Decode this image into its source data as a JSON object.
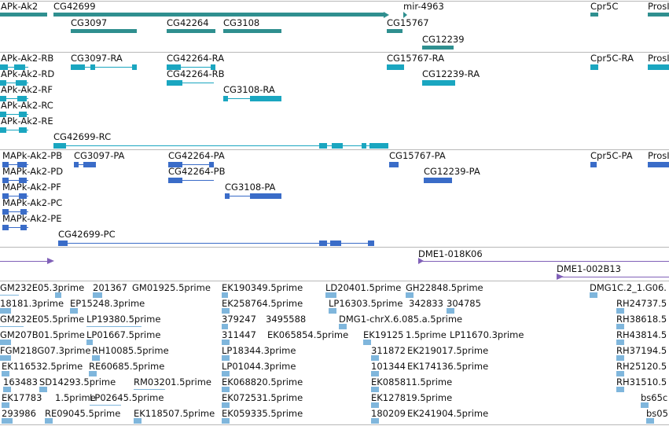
{
  "tracks": {
    "genes": [
      {
        "label": "APk-Ak2"
      },
      {
        "label": "CG42699"
      },
      {
        "label": "mir-4963"
      },
      {
        "label": "Cpr5C"
      },
      {
        "label": "ProsI"
      },
      {
        "label": "CG3097"
      },
      {
        "label": "CG42264"
      },
      {
        "label": "CG3108"
      },
      {
        "label": "CG15767"
      },
      {
        "label": "CG12239"
      }
    ],
    "transcripts": [
      {
        "label": "APk-Ak2-RB"
      },
      {
        "label": "CG3097-RA"
      },
      {
        "label": "CG42264-RA"
      },
      {
        "label": "CG15767-RA"
      },
      {
        "label": "Cpr5C-RA"
      },
      {
        "label": "ProsI"
      },
      {
        "label": "APk-Ak2-RD"
      },
      {
        "label": "CG42264-RB"
      },
      {
        "label": "CG12239-RA"
      },
      {
        "label": "APk-Ak2-RF"
      },
      {
        "label": "CG3108-RA"
      },
      {
        "label": "APk-Ak2-RC"
      },
      {
        "label": "APk-Ak2-RE"
      },
      {
        "label": "CG42699-RC"
      }
    ],
    "proteins": [
      {
        "label": "MAPk-Ak2-PB"
      },
      {
        "label": "CG3097-PA"
      },
      {
        "label": "CG42264-PA"
      },
      {
        "label": "CG15767-PA"
      },
      {
        "label": "Cpr5C-PA"
      },
      {
        "label": "ProsI"
      },
      {
        "label": "MAPk-Ak2-PD"
      },
      {
        "label": "CG42264-PB"
      },
      {
        "label": "CG12239-PA"
      },
      {
        "label": "MAPk-Ak2-PF"
      },
      {
        "label": "CG3108-PA"
      },
      {
        "label": "MAPk-Ak2-PC"
      },
      {
        "label": "MAPk-Ak2-PE"
      },
      {
        "label": "CG42699-PC"
      }
    ],
    "clones": [
      {
        "label": "DME1-018K06"
      },
      {
        "label": "DME1-002B13"
      }
    ],
    "ests": [
      {
        "label": "GM232E05.3prime"
      },
      {
        "label": "201367"
      },
      {
        "label": "GM01925.5prime"
      },
      {
        "label": "EK190349.5prime"
      },
      {
        "label": "LD20401.5prime"
      },
      {
        "label": "GH22848.5prime"
      },
      {
        "label": "DMG1C.2_1.G06."
      },
      {
        "label": "18181.3prime"
      },
      {
        "label": "EP15248.3prime"
      },
      {
        "label": "EK258764.5prime"
      },
      {
        "label": "LP16303.5prime"
      },
      {
        "label": "342833"
      },
      {
        "label": "304785"
      },
      {
        "label": "RH24737.5"
      },
      {
        "label": "GM232E05.5prime"
      },
      {
        "label": "LP19380.5prime"
      },
      {
        "label": "379247"
      },
      {
        "label": "3495588"
      },
      {
        "label": "DMG1-chrX.6.085.a.5prime"
      },
      {
        "label": "RH38618.5"
      },
      {
        "label": "GM207B01.5prime"
      },
      {
        "label": "LP01667.5prime"
      },
      {
        "label": "311447"
      },
      {
        "label": "EK065854.5prime"
      },
      {
        "label": "EK19125"
      },
      {
        "label": "1.5prime"
      },
      {
        "label": "LP11670.3prime"
      },
      {
        "label": "RH43814.5"
      },
      {
        "label": "FGM218G07.3prime"
      },
      {
        "label": "RH10085.5prime"
      },
      {
        "label": "LP18344.3prime"
      },
      {
        "label": "311872"
      },
      {
        "label": "EK219017.5prime"
      },
      {
        "label": "RH37194.5"
      },
      {
        "label": "EK116532.5prime"
      },
      {
        "label": "RE60685.5prime"
      },
      {
        "label": "LP01044.3prime"
      },
      {
        "label": "101344"
      },
      {
        "label": "EK174136.5prime"
      },
      {
        "label": "RH25120.5"
      },
      {
        "label": "163483"
      },
      {
        "label": "SD14293.5prime"
      },
      {
        "label": "RM03201.5prime"
      },
      {
        "label": "EK068820.5prime"
      },
      {
        "label": "EK085811.5prime"
      },
      {
        "label": "RH31510.5"
      },
      {
        "label": "EK17783"
      },
      {
        "label": "1.5prime"
      },
      {
        "label": "LP02645.5prime"
      },
      {
        "label": "EK072531.5prime"
      },
      {
        "label": "EK127819.5prime"
      },
      {
        "label": "bs65c"
      },
      {
        "label": "293986"
      },
      {
        "label": "RE09045.5prime"
      },
      {
        "label": "EK118507.5prime"
      },
      {
        "label": "EK059335.5prime"
      },
      {
        "label": "180209"
      },
      {
        "label": "EK241904.5prime"
      },
      {
        "label": "bs05"
      }
    ]
  }
}
